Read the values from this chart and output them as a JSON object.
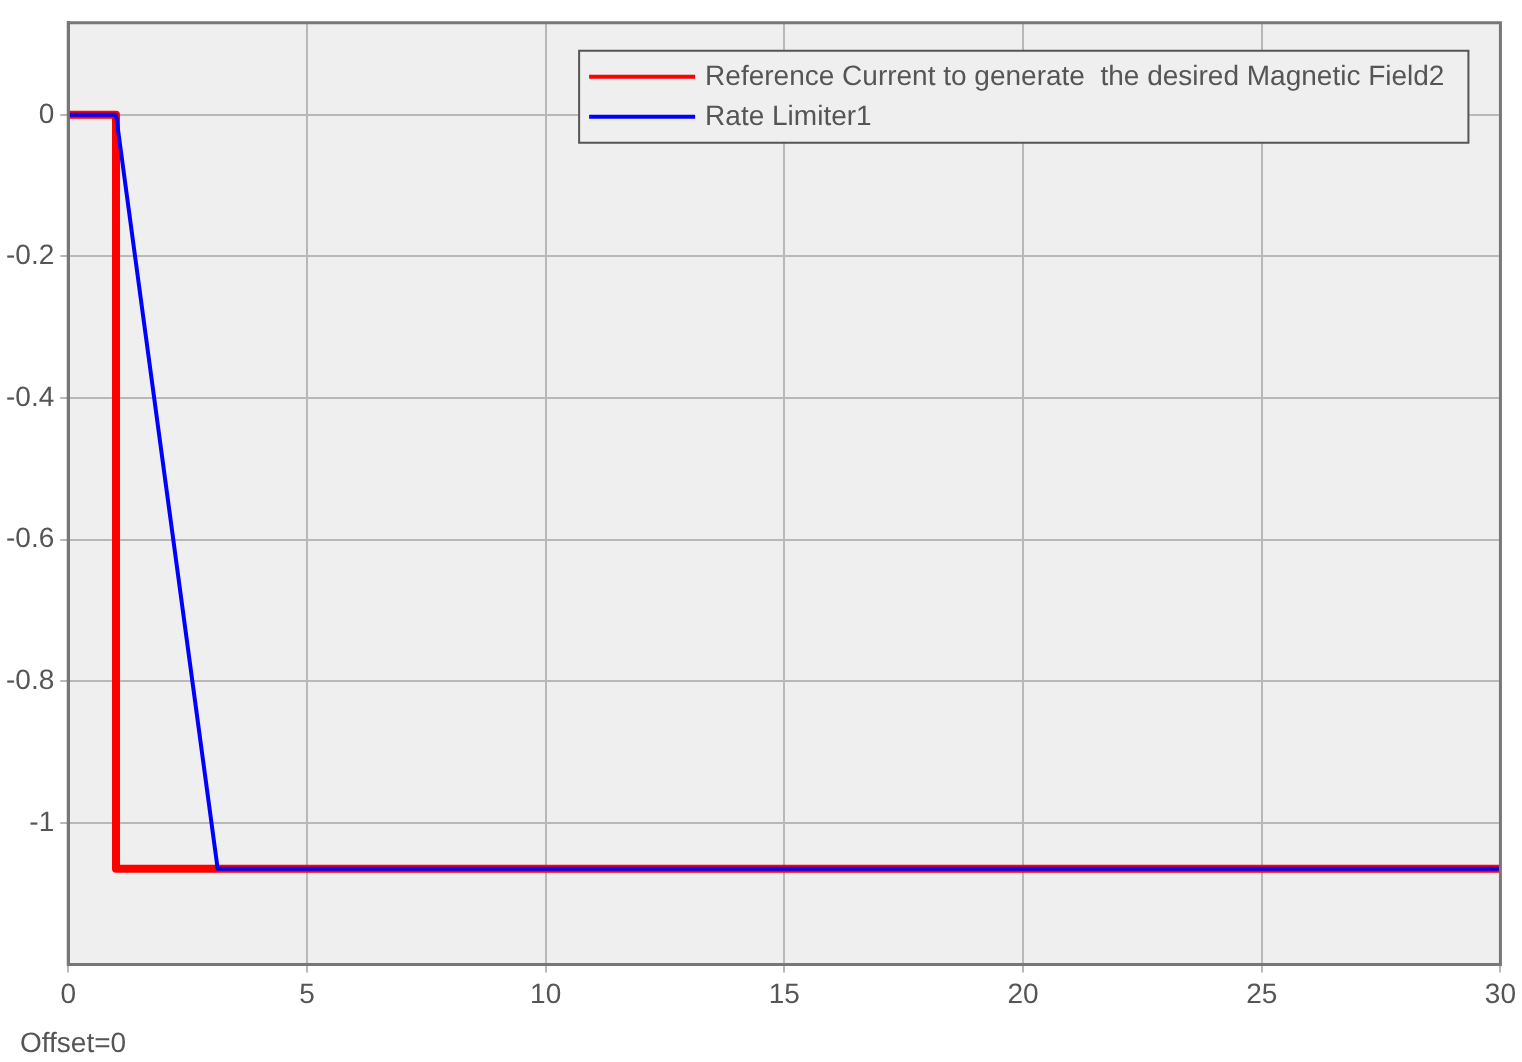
{
  "chart_data": {
    "type": "line",
    "annotations": [
      "Offset=0"
    ],
    "series": [
      {
        "name": "Reference Current to generate  the desired Magnetic Field2",
        "color": "#ff0000",
        "x": [
          0,
          1,
          1,
          3.13,
          30
        ],
        "values": [
          0,
          0,
          -1.065,
          -1.065,
          -1.065
        ]
      },
      {
        "name": "Rate Limiter1",
        "color": "#0000ff",
        "x": [
          0,
          1,
          3.13,
          30
        ],
        "values": [
          0,
          0,
          -1.065,
          -1.065
        ]
      }
    ],
    "xlim": [
      0,
      30
    ],
    "xticks": [
      0,
      5,
      10,
      15,
      20,
      25,
      30
    ],
    "ylim": [
      -1.2,
      0.13
    ],
    "yticks": [
      -1,
      -0.8,
      -0.6,
      -0.4,
      -0.2,
      0
    ],
    "grid": true,
    "legend": "top right",
    "marker": "none",
    "line_style": "solid"
  }
}
